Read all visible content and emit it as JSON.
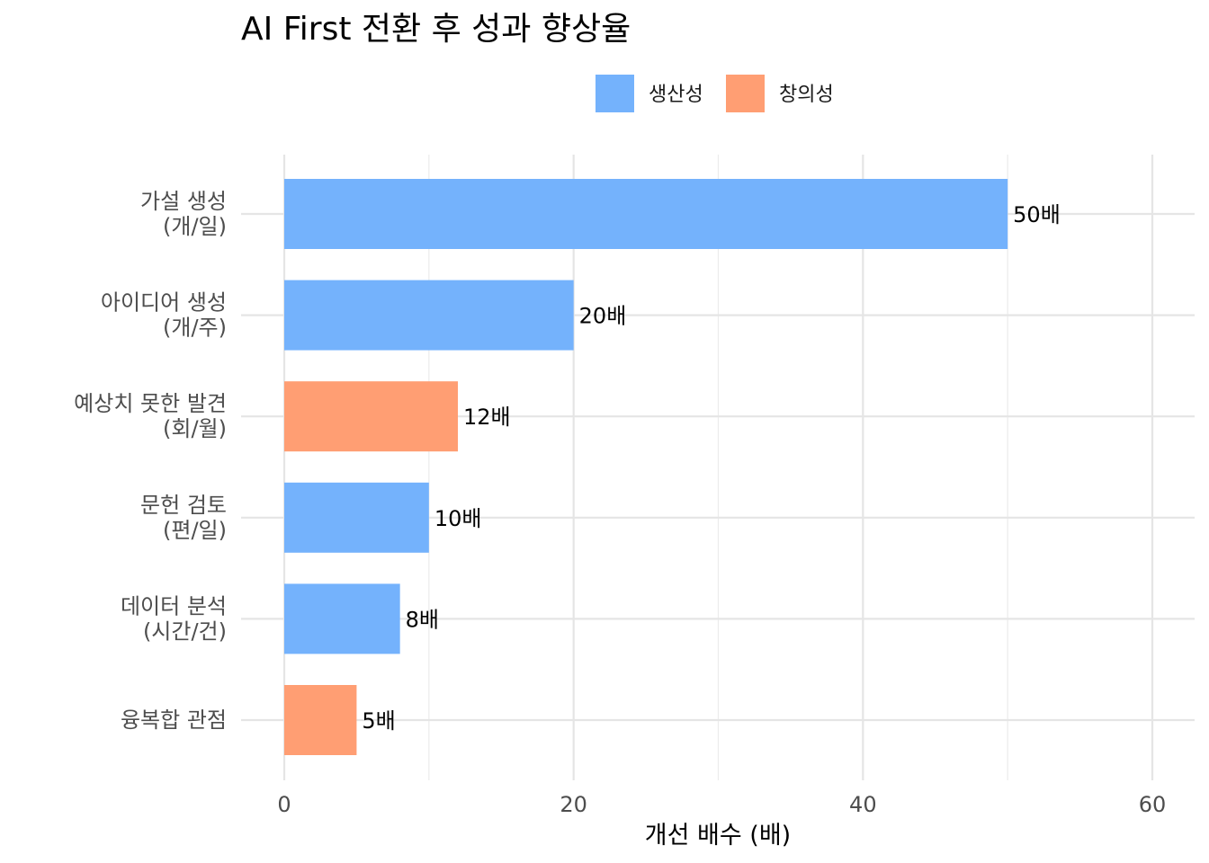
{
  "colors": {
    "생산성": "#74b2fc",
    "창의성": "#ff9e73"
  },
  "chart_data": {
    "type": "bar",
    "orientation": "horizontal",
    "title": "AI First 전환 후 성과 향상율",
    "xlabel": "개선 배수 (배)",
    "ylabel": "",
    "xlim": [
      0,
      60
    ],
    "xticks": [
      0,
      20,
      40,
      60
    ],
    "grid": true,
    "legend_position": "top",
    "legend": [
      "생산성",
      "창의성"
    ],
    "categories": [
      [
        "가설 생성",
        "(개/일)"
      ],
      [
        "아이디어 생성",
        "(개/주)"
      ],
      [
        "예상치 못한 발견",
        "(회/월)"
      ],
      [
        "문헌 검토",
        "(편/일)"
      ],
      [
        "데이터 분석",
        "(시간/건)"
      ],
      [
        "융복합 관점"
      ]
    ],
    "values": [
      50,
      20,
      12,
      10,
      8,
      5
    ],
    "groups": [
      "생산성",
      "생산성",
      "창의성",
      "생산성",
      "생산성",
      "창의성"
    ],
    "data_labels": [
      "50배",
      "20배",
      "12배",
      "10배",
      "8배",
      "5배"
    ]
  }
}
